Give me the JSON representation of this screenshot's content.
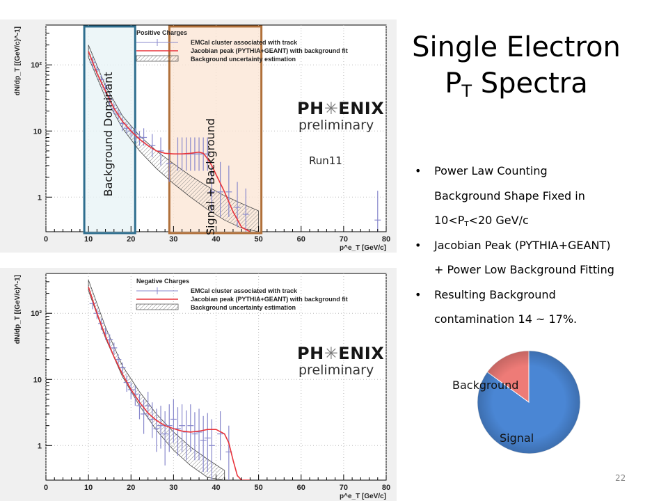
{
  "slide": {
    "title_line1": "Single Electron",
    "title_line2_main": "P",
    "title_line2_sub": "T",
    "title_line2_rest": " Spectra",
    "page_number": "22"
  },
  "bullets": [
    {
      "line1": "Power Law Counting",
      "line2": "Background Shape Fixed in",
      "line3_pre": "10<P",
      "line3_sub": "T",
      "line3_post": "<20 GeV/c"
    },
    {
      "line1": "Jacobian Peak (PYTHIA+GEANT)",
      "line2": "+ Power Low Background Fitting"
    },
    {
      "line1": "Resulting Background",
      "line2": "contamination 14 ~ 17%."
    }
  ],
  "bands": {
    "background_label": "Background Dominant",
    "signal_label": "Signal + Background",
    "background_color": "#2e6e8e",
    "signal_color": "#b0703a"
  },
  "run_label": "Run11",
  "logo": {
    "line1_pre": "PH",
    "line1_star": "✳",
    "line1_post": "ENIX",
    "line2": "preliminary"
  },
  "pie": {
    "background_label": "Background",
    "signal_label": "Signal",
    "colors": {
      "signal": "#4a86d4",
      "background": "#ee7b77"
    }
  },
  "chart_data": [
    {
      "type": "scatter",
      "panel": "top",
      "xlabel": "p^e_T [GeV/c]",
      "ylabel": "dN/dp_T [(GeV/c)^-1]",
      "yscale": "log",
      "xlim": [
        0,
        80
      ],
      "ylim": [
        0.3,
        400
      ],
      "xticks": [
        0,
        10,
        20,
        30,
        40,
        50,
        60,
        70,
        80
      ],
      "yticks": [
        {
          "value": 1,
          "label": "1"
        },
        {
          "value": 10,
          "label": "10"
        },
        {
          "value": 100,
          "label": "10²"
        }
      ],
      "legend": {
        "header": "Positive Charges",
        "entries": [
          "EMCal cluster associated with track",
          "Jacobian peak (PYTHIA+GEANT) with background fit",
          "Background uncertainty estimation"
        ]
      },
      "data_points": {
        "x": [
          11,
          12,
          13,
          14,
          15,
          16,
          17,
          18,
          19,
          20,
          21,
          22,
          23,
          25,
          27,
          29,
          31,
          32,
          33,
          34,
          35,
          36,
          37,
          38,
          39,
          41,
          43,
          45,
          47,
          78
        ],
        "y": [
          110,
          85,
          60,
          45,
          30,
          22,
          18,
          13,
          11,
          10,
          9,
          8,
          8,
          6,
          5,
          3.2,
          4.5,
          4.5,
          4.5,
          4.5,
          4.5,
          4.5,
          4.5,
          4.5,
          1.2,
          1.2,
          1.2,
          0.7,
          0.55,
          0.45
        ],
        "yerr_low": [
          20,
          14,
          10,
          8,
          6,
          4,
          3,
          3,
          2,
          2,
          2,
          2,
          2,
          2,
          2,
          1.5,
          2,
          2,
          2,
          2,
          2,
          2,
          2,
          2,
          0.6,
          0.7,
          0.7,
          0.35,
          0.3,
          0.3
        ],
        "yerr_high": [
          20,
          14,
          10,
          8,
          6,
          4,
          3,
          3,
          2,
          2,
          2,
          2,
          3,
          3,
          3,
          2,
          3.5,
          3.5,
          3.5,
          3.5,
          3.5,
          3.5,
          3.5,
          3.5,
          1.8,
          2.2,
          1.8,
          1,
          0.8,
          0.8
        ]
      },
      "fit_curve": {
        "x": [
          10,
          12,
          14,
          16,
          18,
          20,
          22,
          24,
          26,
          28,
          30,
          32,
          34,
          36,
          37,
          38,
          39,
          40,
          42,
          44,
          46,
          48
        ],
        "y": [
          160,
          75,
          40,
          22,
          14,
          10,
          7.5,
          6,
          5,
          4.6,
          4.5,
          4.5,
          4.6,
          4.8,
          4.6,
          3.8,
          3,
          2.2,
          1.2,
          0.6,
          0.35,
          0.3
        ]
      },
      "background_band": {
        "x": [
          10,
          14,
          18,
          22,
          26,
          30,
          34,
          38,
          42,
          46,
          50
        ],
        "lower": [
          130,
          32,
          11,
          5,
          2.7,
          1.6,
          1,
          0.65,
          0.45,
          0.34,
          0.3
        ],
        "upper": [
          200,
          48,
          17,
          8.5,
          5,
          3.2,
          2.1,
          1.45,
          1.05,
          0.8,
          0.62
        ]
      }
    },
    {
      "type": "scatter",
      "panel": "bottom",
      "xlabel": "p^e_T [GeV/c]",
      "ylabel": "dN/dp_T [(GeV/c)^-1]",
      "yscale": "log",
      "xlim": [
        0,
        80
      ],
      "ylim": [
        0.3,
        400
      ],
      "xticks": [
        0,
        10,
        20,
        30,
        40,
        50,
        60,
        70,
        80
      ],
      "yticks": [
        {
          "value": 1,
          "label": "1"
        },
        {
          "value": 10,
          "label": "10"
        },
        {
          "value": 100,
          "label": "10²"
        }
      ],
      "legend": {
        "header": "Negative Charges",
        "entries": [
          "EMCal cluster associated with track",
          "Jacobian peak (PYTHIA+GEANT) with background fit",
          "Background uncertainty estimation"
        ]
      },
      "data_points": {
        "x": [
          11,
          12,
          13,
          14,
          15,
          16,
          17,
          18,
          19,
          20,
          21,
          22,
          23,
          24,
          25,
          26,
          27,
          28,
          29,
          30,
          31,
          32,
          33,
          34,
          35,
          36,
          37,
          38,
          39,
          41,
          43
        ],
        "y": [
          140,
          100,
          70,
          50,
          40,
          30,
          20,
          15,
          9,
          7,
          6,
          4,
          3,
          4,
          2.5,
          1.8,
          2,
          1.5,
          2,
          2.5,
          1.8,
          2,
          1.6,
          2,
          1.5,
          1.6,
          1.2,
          1.3,
          1,
          1.5,
          0.8
        ],
        "yerr_low": [
          25,
          18,
          14,
          10,
          8,
          6,
          4,
          3,
          2.5,
          2,
          2,
          1.5,
          1.5,
          1.5,
          1.2,
          1,
          1.1,
          1,
          1.2,
          1.4,
          1.1,
          1.2,
          1,
          1.2,
          0.9,
          1,
          0.8,
          0.9,
          0.7,
          0.9,
          0.5
        ],
        "yerr_high": [
          25,
          18,
          14,
          10,
          8,
          6,
          4,
          3,
          2.5,
          2,
          2,
          2,
          2,
          2.5,
          2,
          1.8,
          2,
          1.8,
          2.2,
          2.5,
          2,
          2.2,
          1.8,
          2.2,
          1.7,
          2,
          1.6,
          1.8,
          1.5,
          1.8,
          1.2
        ]
      },
      "fit_curve": {
        "x": [
          10,
          12,
          14,
          16,
          18,
          20,
          22,
          24,
          26,
          28,
          30,
          32,
          34,
          36,
          38,
          40,
          42,
          43,
          44,
          45,
          46,
          48
        ],
        "y": [
          250,
          100,
          45,
          22,
          12,
          7,
          4.5,
          3.1,
          2.4,
          2,
          1.8,
          1.65,
          1.6,
          1.65,
          1.75,
          1.75,
          1.5,
          1.1,
          0.6,
          0.35,
          0.3,
          0.3
        ]
      },
      "background_band": {
        "x": [
          10,
          14,
          18,
          22,
          26,
          30,
          34,
          38,
          42
        ],
        "lower": [
          220,
          42,
          11,
          4,
          1.7,
          0.85,
          0.5,
          0.33,
          0.3
        ],
        "upper": [
          320,
          62,
          16,
          6.5,
          3,
          1.6,
          0.95,
          0.62,
          0.42
        ]
      }
    },
    {
      "type": "pie",
      "panel": "pie",
      "labels": [
        "Signal",
        "Background"
      ],
      "values": [
        0.85,
        0.15
      ]
    }
  ]
}
